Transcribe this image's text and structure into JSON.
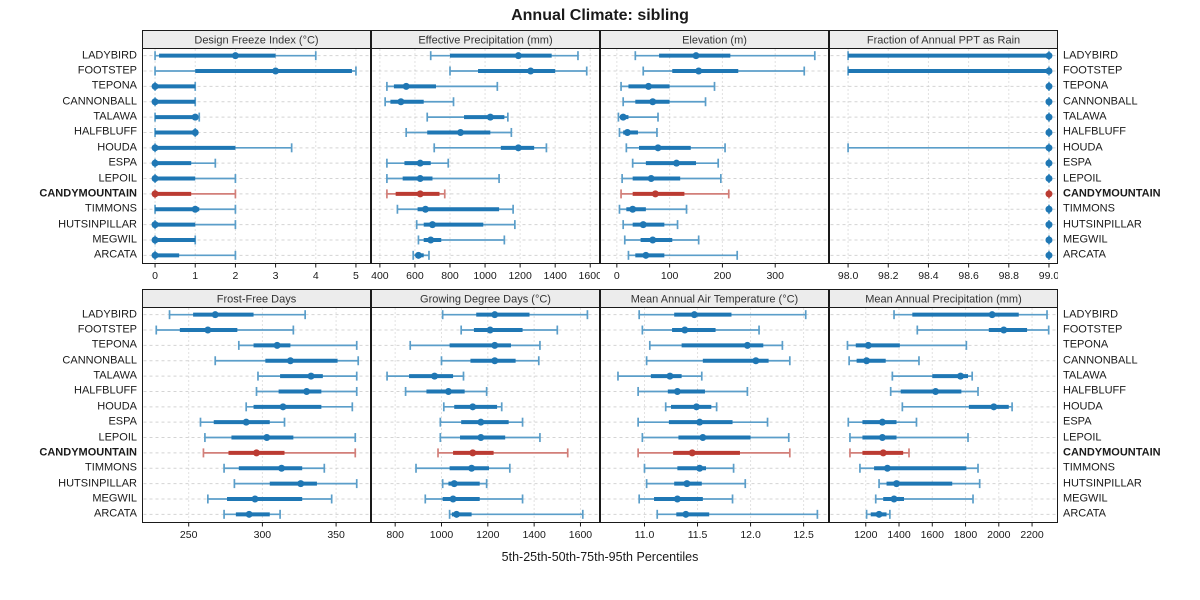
{
  "title": "Annual Climate: sibling",
  "xlabel": "5th-25th-50th-75th-95th Percentiles",
  "percentiles": [
    "5th",
    "25th",
    "50th",
    "75th",
    "95th"
  ],
  "sites": [
    "LADYBIRD",
    "FOOTSTEP",
    "TEPONA",
    "CANNONBALL",
    "TALAWA",
    "HALFBLUFF",
    "HOUDA",
    "ESPA",
    "LEPOIL",
    "CANDYMOUNTAIN",
    "TIMMONS",
    "HUTSINPILLAR",
    "MEGWIL",
    "ARCATA"
  ],
  "highlight_site": "CANDYMOUNTAIN",
  "colors": {
    "series": "#1f77b4",
    "series_light": "#5b9ec9",
    "highlight": "#bb3b32",
    "highlight_light": "#d27f79",
    "strip_bg": "#ececec",
    "strip_text": "#333333",
    "border": "#1a1a1a",
    "grid_h": "#d4d4d4",
    "grid_v": "#c4c4c4",
    "tick_text": "#1a1a1a"
  },
  "chart_data": [
    {
      "type": "dot-whisker",
      "title": "Design Freeze Index (°C)",
      "row": "top",
      "xlim": [
        -0.3,
        5.35
      ],
      "ticks": [
        0,
        1,
        2,
        3,
        4,
        5
      ],
      "tick_labels": [
        "0",
        "1",
        "2",
        "3",
        "4",
        "5"
      ],
      "values": [
        [
          0,
          0.1,
          2,
          3,
          4
        ],
        [
          0,
          1,
          3,
          4.9,
          5
        ],
        [
          0,
          0,
          0,
          1,
          1
        ],
        [
          0,
          0,
          0,
          1,
          1
        ],
        [
          0,
          0,
          1,
          1,
          1.1
        ],
        [
          0,
          0,
          1,
          1,
          1
        ],
        [
          0,
          0,
          0,
          2,
          3.4
        ],
        [
          0,
          0,
          0,
          0.9,
          1.5
        ],
        [
          0,
          0,
          0,
          1,
          2
        ],
        [
          0,
          0,
          0,
          0.9,
          2
        ],
        [
          0,
          0,
          1,
          1.1,
          2
        ],
        [
          0,
          0,
          0,
          1,
          2
        ],
        [
          0,
          0,
          0,
          1,
          1
        ],
        [
          0,
          0,
          0,
          0.6,
          2
        ]
      ]
    },
    {
      "type": "dot-whisker",
      "title": "Effective Precipitation (mm)",
      "row": "top",
      "xlim": [
        355,
        1650
      ],
      "ticks": [
        400,
        600,
        800,
        1000,
        1200,
        1400,
        1600
      ],
      "tick_labels": [
        "400",
        "600",
        "800",
        "1000",
        "1200",
        "1400",
        "1600"
      ],
      "values": [
        [
          690,
          800,
          1190,
          1380,
          1530
        ],
        [
          800,
          960,
          1260,
          1400,
          1580
        ],
        [
          440,
          480,
          550,
          720,
          1070
        ],
        [
          430,
          460,
          520,
          650,
          820
        ],
        [
          670,
          880,
          1030,
          1110,
          1130
        ],
        [
          550,
          670,
          860,
          1030,
          1150
        ],
        [
          710,
          1090,
          1190,
          1280,
          1350
        ],
        [
          440,
          540,
          630,
          690,
          790
        ],
        [
          440,
          530,
          630,
          700,
          1080
        ],
        [
          440,
          490,
          630,
          740,
          770
        ],
        [
          500,
          615,
          660,
          1080,
          1160
        ],
        [
          610,
          650,
          700,
          990,
          1170
        ],
        [
          620,
          650,
          690,
          750,
          1110
        ],
        [
          590,
          605,
          620,
          650,
          680
        ]
      ]
    },
    {
      "type": "dot-whisker",
      "title": "Elevation (m)",
      "row": "top",
      "xlim": [
        -30,
        400
      ],
      "ticks": [
        0,
        100,
        200,
        300
      ],
      "tick_labels": [
        "0",
        "100",
        "200",
        "300"
      ],
      "values": [
        [
          35,
          80,
          150,
          215,
          375
        ],
        [
          50,
          105,
          155,
          230,
          355
        ],
        [
          8,
          22,
          60,
          100,
          185
        ],
        [
          12,
          35,
          68,
          100,
          168
        ],
        [
          3,
          6,
          12,
          22,
          78
        ],
        [
          5,
          12,
          20,
          40,
          76
        ],
        [
          18,
          42,
          78,
          140,
          205
        ],
        [
          30,
          55,
          113,
          150,
          192
        ],
        [
          10,
          30,
          65,
          120,
          197
        ],
        [
          8,
          30,
          73,
          128,
          212
        ],
        [
          5,
          18,
          30,
          55,
          132
        ],
        [
          12,
          30,
          50,
          90,
          115
        ],
        [
          15,
          45,
          68,
          105,
          155
        ],
        [
          22,
          35,
          55,
          90,
          228
        ]
      ]
    },
    {
      "type": "dot-whisker",
      "title": "Fraction of Annual PPT as Rain",
      "row": "top",
      "xlim": [
        97.91,
        99.04
      ],
      "ticks": [
        98.0,
        98.2,
        98.4,
        98.6,
        98.8,
        99.0
      ],
      "tick_labels": [
        "98.0",
        "98.2",
        "98.4",
        "98.6",
        "98.8",
        "99.0"
      ],
      "values": [
        [
          98,
          98,
          99,
          99,
          99
        ],
        [
          98,
          98,
          99,
          99,
          99
        ],
        [
          99,
          99,
          99,
          99,
          99
        ],
        [
          99,
          99,
          99,
          99,
          99
        ],
        [
          99,
          99,
          99,
          99,
          99
        ],
        [
          99,
          99,
          99,
          99,
          99
        ],
        [
          98,
          99,
          99,
          99,
          99
        ],
        [
          99,
          99,
          99,
          99,
          99
        ],
        [
          99,
          99,
          99,
          99,
          99
        ],
        [
          99,
          99,
          99,
          99,
          99
        ],
        [
          99,
          99,
          99,
          99,
          99
        ],
        [
          99,
          99,
          99,
          99,
          99
        ],
        [
          99,
          99,
          99,
          99,
          99
        ],
        [
          99,
          99,
          99,
          99,
          99
        ]
      ]
    },
    {
      "type": "dot-whisker",
      "title": "Frost-Free Days",
      "row": "bottom",
      "xlim": [
        219,
        373
      ],
      "ticks": [
        250,
        300,
        350
      ],
      "tick_labels": [
        "250",
        "300",
        "350"
      ],
      "values": [
        [
          237,
          253,
          268,
          294,
          329
        ],
        [
          228,
          244,
          263,
          283,
          321
        ],
        [
          284,
          294,
          310,
          319,
          364
        ],
        [
          268,
          302,
          319,
          351,
          365
        ],
        [
          297,
          312,
          333,
          341,
          364
        ],
        [
          296,
          311,
          330,
          340,
          364
        ],
        [
          289,
          294,
          314,
          340,
          361
        ],
        [
          258,
          267,
          289,
          305,
          315
        ],
        [
          261,
          279,
          303,
          321,
          363
        ],
        [
          260,
          277,
          296,
          315,
          363
        ],
        [
          274,
          284,
          313,
          327,
          342
        ],
        [
          281,
          305,
          326,
          337,
          364
        ],
        [
          263,
          276,
          295,
          327,
          347
        ],
        [
          274,
          282,
          291,
          305,
          312
        ]
      ]
    },
    {
      "type": "dot-whisker",
      "title": "Growing Degree Days (°C)",
      "row": "bottom",
      "xlim": [
        700,
        1680
      ],
      "ticks": [
        800,
        1000,
        1200,
        1400,
        1600
      ],
      "tick_labels": [
        "800",
        "1000",
        "1200",
        "1400",
        "1600"
      ],
      "values": [
        [
          1005,
          1150,
          1230,
          1380,
          1630
        ],
        [
          1085,
          1140,
          1210,
          1350,
          1500
        ],
        [
          865,
          1035,
          1230,
          1300,
          1425
        ],
        [
          1000,
          1125,
          1230,
          1320,
          1420
        ],
        [
          765,
          860,
          970,
          1050,
          1095
        ],
        [
          845,
          935,
          1030,
          1100,
          1195
        ],
        [
          1010,
          1055,
          1135,
          1240,
          1260
        ],
        [
          995,
          1085,
          1170,
          1290,
          1350
        ],
        [
          995,
          1080,
          1170,
          1275,
          1425
        ],
        [
          985,
          1050,
          1135,
          1225,
          1545
        ],
        [
          890,
          1035,
          1130,
          1205,
          1295
        ],
        [
          1005,
          1030,
          1055,
          1165,
          1195
        ],
        [
          930,
          1005,
          1050,
          1165,
          1350
        ],
        [
          1035,
          1045,
          1065,
          1130,
          1610
        ]
      ]
    },
    {
      "type": "dot-whisker",
      "title": "Mean Annual Air Temperature (°C)",
      "row": "bottom",
      "xlim": [
        10.59,
        12.73
      ],
      "ticks": [
        11.0,
        11.5,
        12.0,
        12.5
      ],
      "tick_labels": [
        "11.0",
        "11.5",
        "12.0",
        "12.5"
      ],
      "values": [
        [
          10.95,
          11.28,
          11.47,
          11.82,
          12.52
        ],
        [
          10.98,
          11.26,
          11.38,
          11.67,
          12.08
        ],
        [
          11.05,
          11.35,
          11.97,
          12.12,
          12.3
        ],
        [
          11.02,
          11.55,
          12.05,
          12.17,
          12.37
        ],
        [
          10.75,
          11.06,
          11.24,
          11.35,
          11.54
        ],
        [
          10.94,
          11.22,
          11.31,
          11.57,
          11.97
        ],
        [
          11.2,
          11.25,
          11.49,
          11.63,
          11.68
        ],
        [
          10.94,
          11.23,
          11.52,
          11.83,
          12.16
        ],
        [
          10.98,
          11.32,
          11.55,
          12.0,
          12.36
        ],
        [
          10.94,
          11.27,
          11.45,
          11.9,
          12.37
        ],
        [
          11.0,
          11.31,
          11.52,
          11.58,
          11.84
        ],
        [
          11.02,
          11.28,
          11.4,
          11.54,
          11.95
        ],
        [
          10.95,
          11.09,
          11.31,
          11.55,
          11.83
        ],
        [
          11.12,
          11.3,
          11.39,
          11.61,
          12.63
        ]
      ]
    },
    {
      "type": "dot-whisker",
      "title": "Mean Annual Precipitation (mm)",
      "row": "bottom",
      "xlim": [
        985,
        2350
      ],
      "ticks": [
        1200,
        1400,
        1600,
        1800,
        2000,
        2200
      ],
      "tick_labels": [
        "1200",
        "1400",
        "1600",
        "1800",
        "2000",
        "2200"
      ],
      "values": [
        [
          1370,
          1480,
          1960,
          2120,
          2290
        ],
        [
          1510,
          1940,
          2030,
          2170,
          2300
        ],
        [
          1090,
          1140,
          1215,
          1405,
          1805
        ],
        [
          1100,
          1145,
          1205,
          1320,
          1520
        ],
        [
          1360,
          1600,
          1770,
          1815,
          1840
        ],
        [
          1350,
          1410,
          1620,
          1775,
          1875
        ],
        [
          1420,
          1820,
          1970,
          2060,
          2080
        ],
        [
          1095,
          1180,
          1300,
          1385,
          1505
        ],
        [
          1105,
          1180,
          1300,
          1385,
          1815
        ],
        [
          1105,
          1180,
          1305,
          1425,
          1460
        ],
        [
          1165,
          1250,
          1330,
          1805,
          1875
        ],
        [
          1280,
          1325,
          1385,
          1720,
          1885
        ],
        [
          1260,
          1305,
          1370,
          1430,
          1845
        ],
        [
          1205,
          1230,
          1280,
          1325,
          1345
        ]
      ]
    }
  ]
}
